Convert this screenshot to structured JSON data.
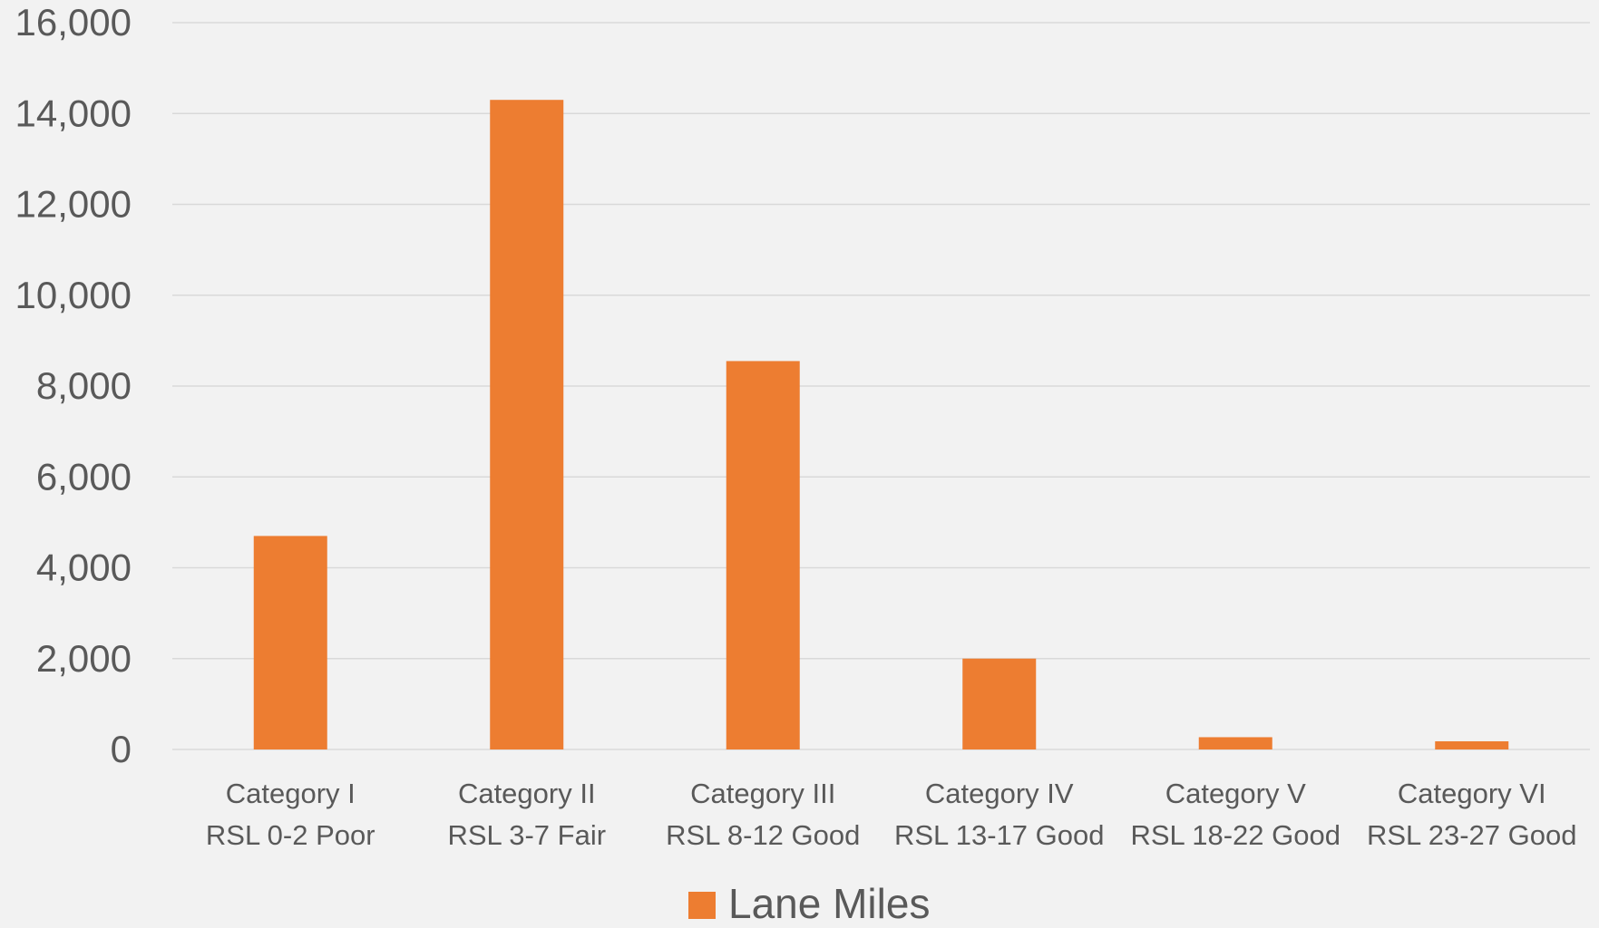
{
  "chart_data": {
    "type": "bar",
    "title": "",
    "xlabel": "",
    "ylabel": "",
    "ylim": [
      0,
      16000
    ],
    "yticks": [
      "0",
      "2,000",
      "4,000",
      "6,000",
      "8,000",
      "10,000",
      "12,000",
      "14,000",
      "16,000"
    ],
    "ytick_values": [
      0,
      2000,
      4000,
      6000,
      8000,
      10000,
      12000,
      14000,
      16000
    ],
    "categories": [
      [
        "Category I",
        "RSL 0-2 Poor"
      ],
      [
        "Category II",
        "RSL 3-7 Fair"
      ],
      [
        "Category III",
        "RSL 8-12 Good"
      ],
      [
        "Category IV",
        "RSL 13-17 Good"
      ],
      [
        "Category V",
        "RSL 18-22 Good"
      ],
      [
        "Category VI",
        "RSL 23-27 Good"
      ]
    ],
    "series": [
      {
        "name": "Lane Miles",
        "color": "#ed7d31",
        "values": [
          4700,
          14300,
          8550,
          2000,
          270,
          180
        ]
      }
    ],
    "grid": true,
    "legend": "bottom-center"
  }
}
